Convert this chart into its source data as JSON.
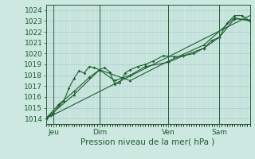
{
  "xlabel": "Pression niveau de la mer( hPa )",
  "ylim": [
    1013.5,
    1024.5
  ],
  "xlim": [
    0,
    80
  ],
  "yticks": [
    1014,
    1015,
    1016,
    1017,
    1018,
    1019,
    1020,
    1021,
    1022,
    1023,
    1024
  ],
  "xtick_positions": [
    3,
    21,
    48,
    68
  ],
  "xtick_labels": [
    "Jeu",
    "Dim",
    "Ven",
    "Sam"
  ],
  "vlines": [
    3,
    21,
    48,
    68
  ],
  "bg_color": "#cce8e0",
  "grid_color": "#aacccc",
  "line_color": "#1e5c30",
  "line1_x": [
    0,
    2,
    3,
    5,
    7,
    9,
    11,
    13,
    15,
    17,
    19,
    21,
    23,
    25,
    27,
    29,
    31,
    33,
    36,
    39,
    42,
    46,
    50,
    54,
    58,
    62,
    65,
    68,
    71,
    74,
    77,
    80
  ],
  "line1_y": [
    1014.1,
    1014.3,
    1014.5,
    1015.2,
    1015.6,
    1016.8,
    1017.7,
    1018.4,
    1018.2,
    1018.8,
    1018.7,
    1018.5,
    1018.7,
    1018.3,
    1017.2,
    1017.3,
    1018.2,
    1018.5,
    1018.8,
    1019.0,
    1019.3,
    1019.8,
    1019.7,
    1019.8,
    1020.0,
    1020.5,
    1021.2,
    1021.5,
    1022.8,
    1023.5,
    1023.5,
    1023.0
  ],
  "line2_x": [
    0,
    5,
    11,
    17,
    21,
    27,
    33,
    39,
    48,
    54,
    62,
    68,
    74,
    80
  ],
  "line2_y": [
    1014.0,
    1015.3,
    1016.5,
    1017.8,
    1018.5,
    1017.5,
    1018.0,
    1018.8,
    1019.2,
    1019.8,
    1020.5,
    1021.5,
    1023.2,
    1023.1
  ],
  "line3_x": [
    0,
    11,
    21,
    33,
    48,
    62,
    74,
    80
  ],
  "line3_y": [
    1014.0,
    1016.2,
    1018.5,
    1017.5,
    1019.3,
    1020.8,
    1023.3,
    1023.0
  ],
  "line4_x": [
    0,
    80
  ],
  "line4_y": [
    1014.0,
    1023.5
  ]
}
